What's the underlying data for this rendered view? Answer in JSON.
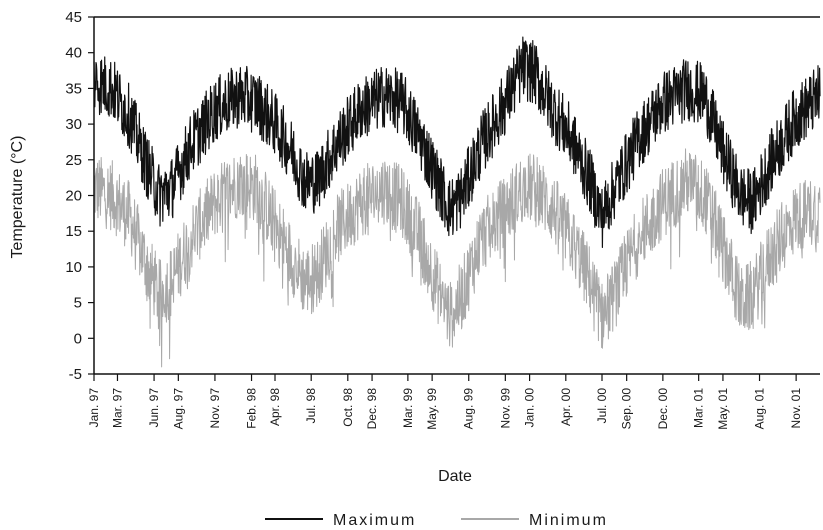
{
  "chart_data": {
    "type": "line",
    "title": "",
    "xlabel": "Date",
    "ylabel": "Temperature (°C)",
    "ylim": [
      -5,
      45
    ],
    "yticks": [
      -5,
      0,
      5,
      10,
      15,
      20,
      25,
      30,
      35,
      40,
      45
    ],
    "xlim": [
      "1997-01-01",
      "2001-12-31"
    ],
    "xticks": [
      {
        "date": "1997-01-01",
        "label": "Jan. 97"
      },
      {
        "date": "1997-03-01",
        "label": "Mar. 97"
      },
      {
        "date": "1997-06-01",
        "label": "Jun. 97"
      },
      {
        "date": "1997-08-01",
        "label": "Aug. 97"
      },
      {
        "date": "1997-11-01",
        "label": "Nov. 97"
      },
      {
        "date": "1998-02-01",
        "label": "Feb. 98"
      },
      {
        "date": "1998-04-01",
        "label": "Apr. 98"
      },
      {
        "date": "1998-07-01",
        "label": "Jul. 98"
      },
      {
        "date": "1998-10-01",
        "label": "Oct. 98"
      },
      {
        "date": "1998-12-01",
        "label": "Dec. 98"
      },
      {
        "date": "1999-03-01",
        "label": "Mar. 99"
      },
      {
        "date": "1999-05-01",
        "label": "May. 99"
      },
      {
        "date": "1999-08-01",
        "label": "Aug. 99"
      },
      {
        "date": "1999-11-01",
        "label": "Nov. 99"
      },
      {
        "date": "2000-01-01",
        "label": "Jan. 00"
      },
      {
        "date": "2000-04-01",
        "label": "Apr. 00"
      },
      {
        "date": "2000-07-01",
        "label": "Jul. 00"
      },
      {
        "date": "2000-09-01",
        "label": "Sep. 00"
      },
      {
        "date": "2000-12-01",
        "label": "Dec. 00"
      },
      {
        "date": "2001-03-01",
        "label": "Mar. 01"
      },
      {
        "date": "2001-05-01",
        "label": "May. 01"
      },
      {
        "date": "2001-08-01",
        "label": "Aug. 01"
      },
      {
        "date": "2001-11-01",
        "label": "Nov. 01"
      }
    ],
    "grid": false,
    "legend_position": "bottom-center",
    "series": [
      {
        "name": "Maximum",
        "color": "#111111",
        "points": [
          [
            "1997-01-01",
            36
          ],
          [
            "1997-02-15",
            35
          ],
          [
            "1997-04-01",
            31
          ],
          [
            "1997-05-15",
            24
          ],
          [
            "1997-06-15",
            20
          ],
          [
            "1997-07-15",
            21
          ],
          [
            "1997-09-01",
            27
          ],
          [
            "1997-11-01",
            32
          ],
          [
            "1998-01-01",
            34
          ],
          [
            "1998-02-15",
            33
          ],
          [
            "1998-04-01",
            30
          ],
          [
            "1998-05-15",
            26
          ],
          [
            "1998-06-15",
            22
          ],
          [
            "1998-07-15",
            22
          ],
          [
            "1998-09-01",
            27
          ],
          [
            "1998-11-01",
            32
          ],
          [
            "1999-01-01",
            34
          ],
          [
            "1999-02-15",
            33
          ],
          [
            "1999-04-01",
            28
          ],
          [
            "1999-05-15",
            22
          ],
          [
            "1999-06-15",
            18
          ],
          [
            "1999-07-15",
            20
          ],
          [
            "1999-09-01",
            27
          ],
          [
            "1999-11-01",
            33
          ],
          [
            "1999-12-15",
            38
          ],
          [
            "2000-01-15",
            37
          ],
          [
            "2000-03-01",
            32
          ],
          [
            "2000-04-15",
            28
          ],
          [
            "2000-06-01",
            22
          ],
          [
            "2000-07-01",
            17
          ],
          [
            "2000-08-01",
            21
          ],
          [
            "2000-10-01",
            28
          ],
          [
            "2000-12-01",
            33
          ],
          [
            "2001-02-01",
            35
          ],
          [
            "2001-03-15",
            34
          ],
          [
            "2001-05-01",
            26
          ],
          [
            "2001-06-15",
            20
          ],
          [
            "2001-07-15",
            19
          ],
          [
            "2001-09-01",
            25
          ],
          [
            "2001-11-01",
            31
          ],
          [
            "2001-12-31",
            34
          ]
        ]
      },
      {
        "name": "Minimum",
        "color": "#a8a8a8",
        "points": [
          [
            "1997-01-01",
            21
          ],
          [
            "1997-02-15",
            20
          ],
          [
            "1997-04-01",
            17
          ],
          [
            "1997-05-15",
            10
          ],
          [
            "1997-06-15",
            6
          ],
          [
            "1997-07-15",
            8
          ],
          [
            "1997-09-01",
            14
          ],
          [
            "1997-11-01",
            19
          ],
          [
            "1998-01-01",
            22
          ],
          [
            "1998-02-15",
            21
          ],
          [
            "1998-04-01",
            16
          ],
          [
            "1998-05-15",
            11
          ],
          [
            "1998-06-15",
            8
          ],
          [
            "1998-07-15",
            9
          ],
          [
            "1998-09-01",
            15
          ],
          [
            "1998-11-01",
            19
          ],
          [
            "1999-01-01",
            21
          ],
          [
            "1999-02-15",
            19
          ],
          [
            "1999-04-01",
            14
          ],
          [
            "1999-05-15",
            7
          ],
          [
            "1999-06-15",
            3
          ],
          [
            "1999-07-15",
            6
          ],
          [
            "1999-09-01",
            14
          ],
          [
            "1999-11-01",
            18
          ],
          [
            "1999-12-15",
            21
          ],
          [
            "2000-01-15",
            21
          ],
          [
            "2000-03-01",
            18
          ],
          [
            "2000-04-15",
            14
          ],
          [
            "2000-06-01",
            8
          ],
          [
            "2000-07-01",
            3
          ],
          [
            "2000-08-01",
            6
          ],
          [
            "2000-10-01",
            14
          ],
          [
            "2000-12-01",
            19
          ],
          [
            "2001-02-01",
            22
          ],
          [
            "2001-03-15",
            20
          ],
          [
            "2001-05-01",
            13
          ],
          [
            "2001-06-15",
            5
          ],
          [
            "2001-07-15",
            6
          ],
          [
            "2001-09-01",
            12
          ],
          [
            "2001-11-01",
            17
          ],
          [
            "2001-12-31",
            18
          ]
        ]
      }
    ]
  }
}
